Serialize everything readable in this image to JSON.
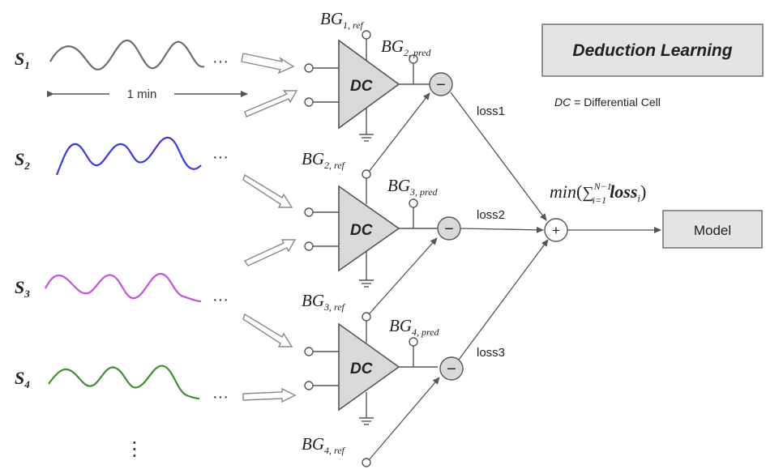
{
  "signals": [
    {
      "letter": "S",
      "sub": "1",
      "color": "#6d6d6d"
    },
    {
      "letter": "S",
      "sub": "2",
      "color": "#3a3adf"
    },
    {
      "letter": "S",
      "sub": "3",
      "color": "#c84fe0"
    },
    {
      "letter": "S",
      "sub": "4",
      "color": "#3f8f32"
    }
  ],
  "ellipsis": "···",
  "vertical_ellipsis": "⋮",
  "duration_label": "1 min",
  "dc_label": "DC",
  "title_box": "Deduction Learning",
  "legend": {
    "abbr": "DC",
    "text": " = Differential Cell"
  },
  "ref_labels": [
    {
      "base": "BG",
      "sub": "1, ref"
    },
    {
      "base": "BG",
      "sub": "2, ref"
    },
    {
      "base": "BG",
      "sub": "3, ref"
    },
    {
      "base": "BG",
      "sub": "4, ref"
    }
  ],
  "pred_labels": [
    {
      "base": "BG",
      "sub": "2, pred"
    },
    {
      "base": "BG",
      "sub": "3, pred"
    },
    {
      "base": "BG",
      "sub": "4, pred"
    }
  ],
  "loss_labels": [
    "loss1",
    "loss2",
    "loss3"
  ],
  "minus_symbol": "−",
  "plus_symbol": "+",
  "objective": {
    "min": "min",
    "paren_open": "(",
    "sum": "∑",
    "upper": "N−1",
    "lower": "i=1",
    "term": "loss",
    "term_sub": "i",
    "paren_close": ")"
  },
  "model_box": "Model"
}
